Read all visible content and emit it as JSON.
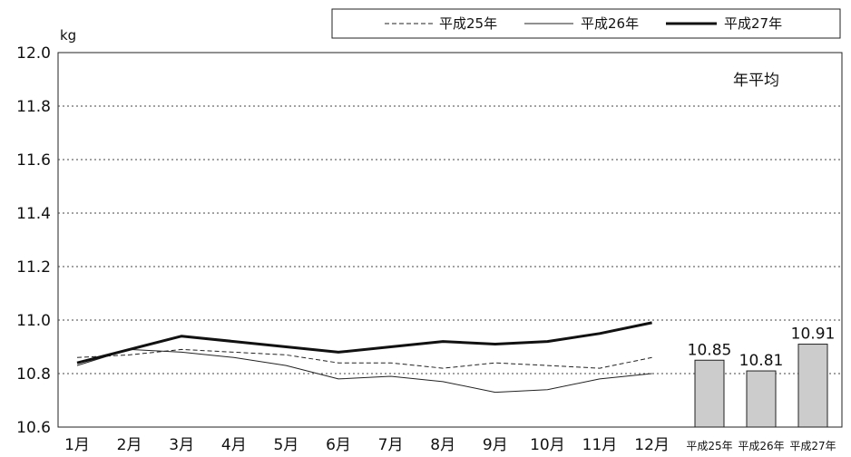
{
  "chart_data": {
    "type": "line",
    "ylabel": "kg",
    "ylim": [
      10.6,
      12.0
    ],
    "yticks": [
      "12.0",
      "11.8",
      "11.6",
      "11.4",
      "11.2",
      "11.0",
      "10.8",
      "10.6"
    ],
    "grid": true,
    "legend_position": "top",
    "categories": [
      "1月",
      "2月",
      "3月",
      "4月",
      "5月",
      "6月",
      "7月",
      "8月",
      "9月",
      "10月",
      "11月",
      "12月"
    ],
    "series": [
      {
        "name": "平成25年",
        "style": "dashed",
        "values": [
          10.86,
          10.87,
          10.89,
          10.88,
          10.87,
          10.84,
          10.84,
          10.82,
          10.84,
          10.83,
          10.82,
          10.86
        ]
      },
      {
        "name": "平成26年",
        "style": "thin",
        "values": [
          10.83,
          10.89,
          10.88,
          10.86,
          10.83,
          10.78,
          10.79,
          10.77,
          10.73,
          10.74,
          10.78,
          10.8
        ]
      },
      {
        "name": "平成27年",
        "style": "bold",
        "values": [
          10.84,
          10.89,
          10.94,
          10.92,
          10.9,
          10.88,
          10.9,
          10.92,
          10.91,
          10.92,
          10.95,
          10.99
        ]
      }
    ],
    "annual_average": {
      "title": "年平均",
      "type": "bar",
      "bar_color": "#cccccc",
      "categories": [
        "平成25年",
        "平成26年",
        "平成27年"
      ],
      "values": [
        10.85,
        10.81,
        10.91
      ],
      "labels": [
        "10.85",
        "10.81",
        "10.91"
      ]
    }
  }
}
